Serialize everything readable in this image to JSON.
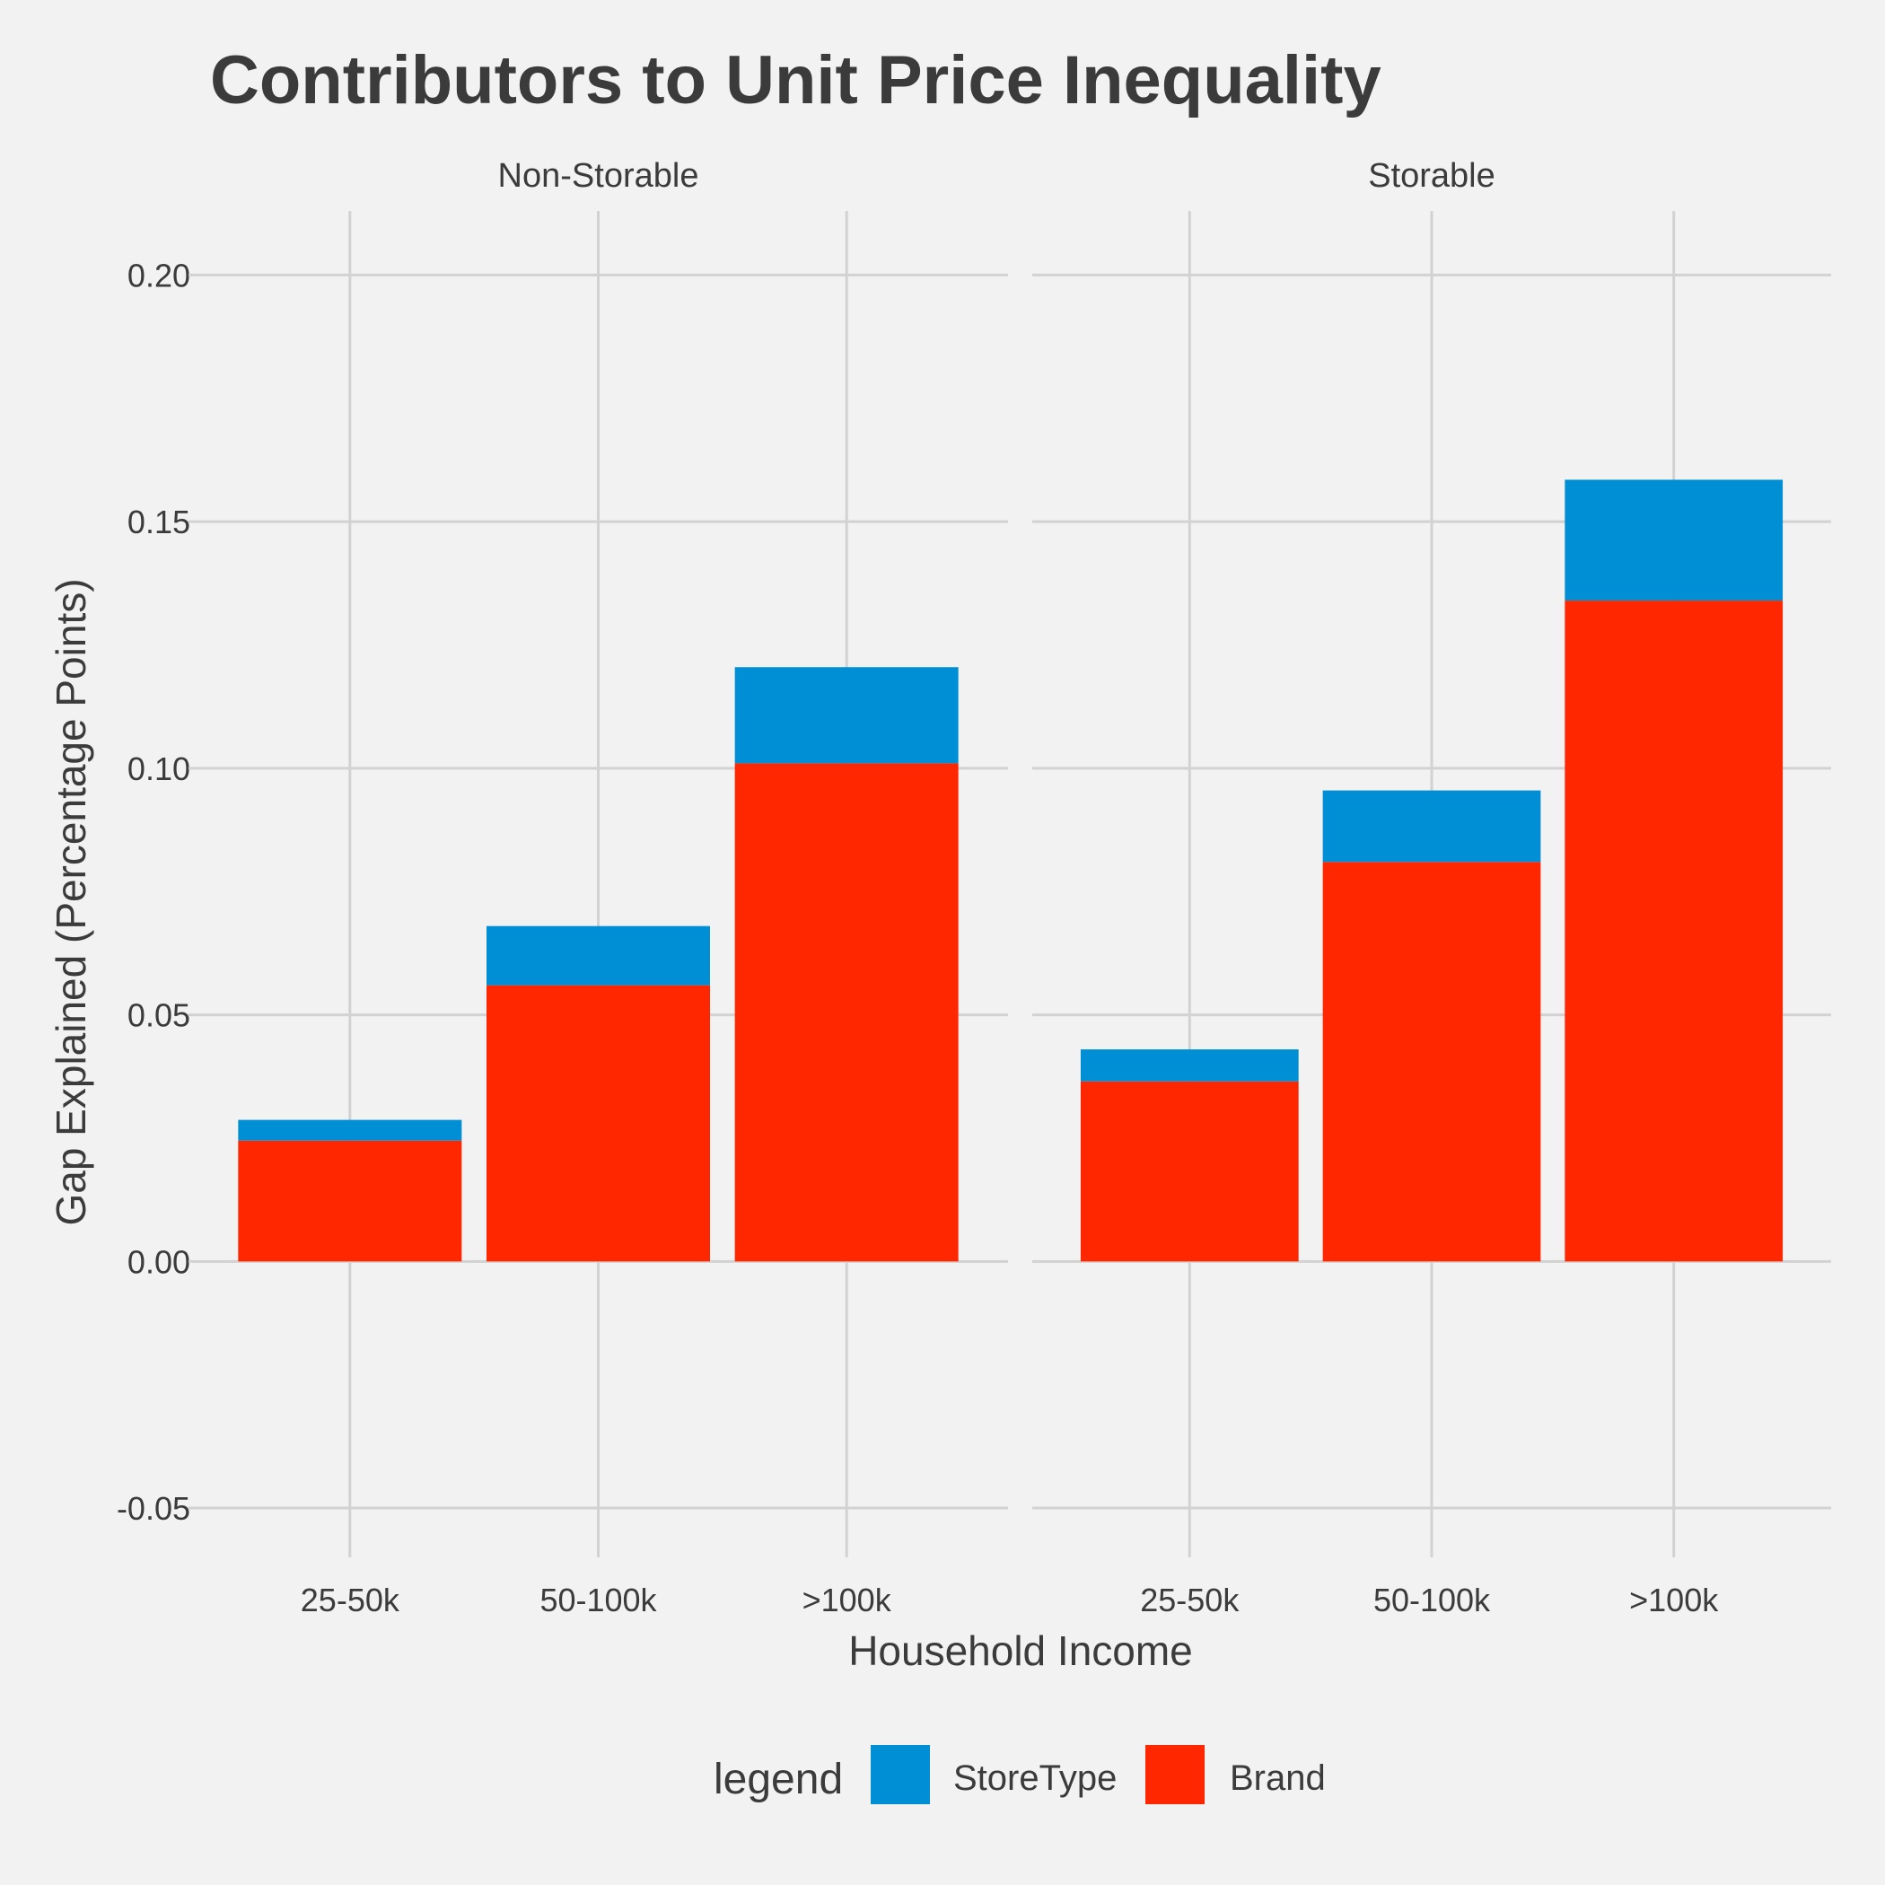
{
  "chart_data": {
    "type": "bar",
    "stacked": true,
    "title": "Contributors to Unit Price Inequality",
    "xlabel": "Household Income",
    "ylabel": "Gap Explained (Percentage Points)",
    "ylim": [
      -0.06,
      0.213
    ],
    "yticks": [
      "-0.05",
      "0.00",
      "0.05",
      "0.10",
      "0.15",
      "0.20"
    ],
    "grid": true,
    "categories": [
      "25-50k",
      "50-100k",
      ">100k"
    ],
    "legend": {
      "title": "legend",
      "position": "bottom",
      "entries": [
        {
          "name": "StoreType",
          "color": "#008fd5"
        },
        {
          "name": "Brand",
          "color": "#ff2700"
        }
      ]
    },
    "panels": [
      {
        "name": "Non-Storable",
        "series": [
          {
            "name": "Brand",
            "color": "#ff2700",
            "values": [
              0.0245,
              0.056,
              0.101
            ]
          },
          {
            "name": "StoreType",
            "color": "#008fd5",
            "values": [
              0.0042,
              0.012,
              0.0195
            ]
          }
        ]
      },
      {
        "name": "Storable",
        "series": [
          {
            "name": "Brand",
            "color": "#ff2700",
            "values": [
              0.0365,
              0.081,
              0.134
            ]
          },
          {
            "name": "StoreType",
            "color": "#008fd5",
            "values": [
              0.0065,
              0.0145,
              0.0245
            ]
          }
        ]
      }
    ]
  }
}
